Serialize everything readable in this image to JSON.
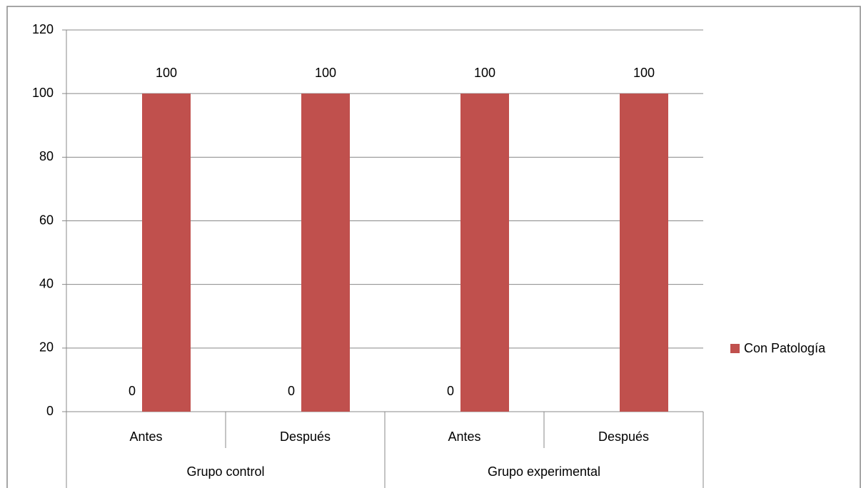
{
  "chart_data": {
    "type": "bar",
    "groups": [
      {
        "label": "Grupo control",
        "categories": [
          "Antes",
          "Después"
        ]
      },
      {
        "label": "Grupo experimental",
        "categories": [
          "Antes",
          "Después"
        ]
      }
    ],
    "series": [
      {
        "values": [
          0,
          0,
          0,
          null
        ]
      },
      {
        "name": "Con Patología",
        "color": "#c0504d",
        "values": [
          100,
          100,
          100,
          100
        ]
      }
    ],
    "ylim": [
      0,
      120
    ],
    "yticks": [
      0,
      20,
      40,
      60,
      80,
      100,
      120
    ],
    "grid": true,
    "legend": "right"
  }
}
